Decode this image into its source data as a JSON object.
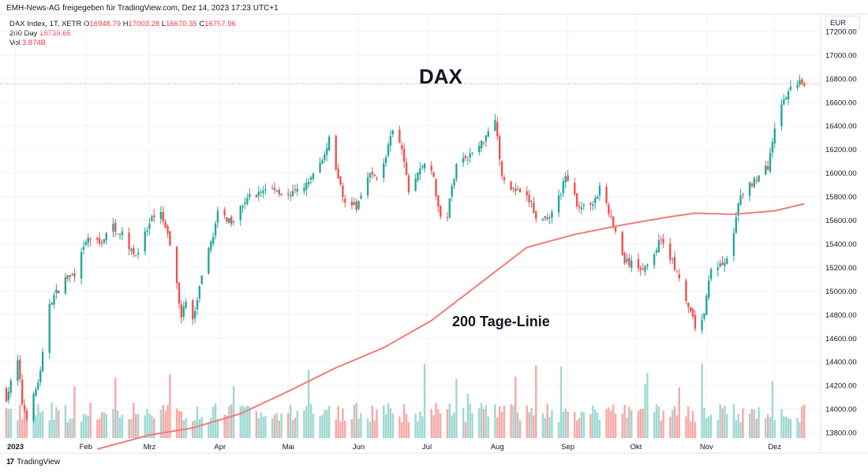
{
  "header": {
    "source_line": "EMH-News-AG freigegeben für TradingView.com, Dez 14, 2023 17:23 UTC+1",
    "symbol": "DAX Index, 1T, XETR",
    "ohlc": {
      "o_label": "O",
      "o": "16948.79",
      "h_label": "H",
      "h": "17003.28",
      "l_label": "L",
      "l": "16670.35",
      "c_label": "C",
      "c": "16757.96"
    },
    "ma_label": "200 Day",
    "ma_value": "15739.65",
    "vol_label": "Vol",
    "vol_value": "3.874B",
    "currency": "EUR"
  },
  "footer": {
    "brand": "TradingView",
    "logo_glyph": "17"
  },
  "colors": {
    "up": "#26a69a",
    "down": "#ef5350",
    "ma": "#f27b7b",
    "vol_up": "#9fd8d2",
    "vol_down": "#f6a9a7"
  },
  "chart_data": {
    "type": "candlestick",
    "title": "DAX",
    "annotation": "200 Tage-Linie",
    "y_ticks": [
      "17200.00",
      "17000.00",
      "16800.00",
      "16600.00",
      "16400.00",
      "16200.00",
      "16000.00",
      "15800.00",
      "15600.00",
      "15400.00",
      "15200.00",
      "15000.00",
      "14800.00",
      "14600.00",
      "14400.00",
      "14200.00",
      "14000.00",
      "13800.00"
    ],
    "y_range": [
      13660,
      17320
    ],
    "x_range": [
      "2022-12-28",
      "2023-12-16"
    ],
    "x_ticks": [
      {
        "label": "2023",
        "date": "2023-01-01"
      },
      {
        "label": "Feb",
        "date": "2023-02-01"
      },
      {
        "label": "Mrz",
        "date": "2023-03-01"
      },
      {
        "label": "Apr",
        "date": "2023-04-01"
      },
      {
        "label": "Mai",
        "date": "2023-05-01"
      },
      {
        "label": "Jun",
        "date": "2023-06-01"
      },
      {
        "label": "Jul",
        "date": "2023-07-01"
      },
      {
        "label": "Aug",
        "date": "2023-08-01"
      },
      {
        "label": "Sep",
        "date": "2023-09-01"
      },
      {
        "label": "Okt",
        "date": "2023-10-01"
      },
      {
        "label": "Nov",
        "date": "2023-11-01"
      },
      {
        "label": "Dez",
        "date": "2023-12-01"
      }
    ],
    "last_price_line": 16757.96,
    "close_anchors": [
      [
        "2022-12-28",
        14100
      ],
      [
        "2023-01-02",
        14400
      ],
      [
        "2023-01-04",
        14050
      ],
      [
        "2023-01-06",
        13950
      ],
      [
        "2023-01-09",
        14100
      ],
      [
        "2023-01-12",
        14300
      ],
      [
        "2023-01-16",
        14900
      ],
      [
        "2023-01-23",
        15100
      ],
      [
        "2023-01-27",
        15150
      ],
      [
        "2023-02-02",
        15450
      ],
      [
        "2023-02-07",
        15400
      ],
      [
        "2023-02-13",
        15550
      ],
      [
        "2023-02-16",
        15500
      ],
      [
        "2023-02-23",
        15300
      ],
      [
        "2023-03-02",
        15600
      ],
      [
        "2023-03-06",
        15650
      ],
      [
        "2023-03-10",
        15400
      ],
      [
        "2023-03-15",
        14800
      ],
      [
        "2023-03-17",
        14900
      ],
      [
        "2023-03-20",
        14750
      ],
      [
        "2023-03-24",
        15100
      ],
      [
        "2023-03-31",
        15650
      ],
      [
        "2023-04-06",
        15600
      ],
      [
        "2023-04-14",
        15800
      ],
      [
        "2023-04-20",
        15850
      ],
      [
        "2023-04-25",
        15870
      ],
      [
        "2023-05-02",
        15800
      ],
      [
        "2023-05-10",
        15920
      ],
      [
        "2023-05-18",
        16180
      ],
      [
        "2023-05-19",
        16300
      ],
      [
        "2023-05-25",
        15800
      ],
      [
        "2023-05-31",
        15700
      ],
      [
        "2023-06-05",
        16000
      ],
      [
        "2023-06-09",
        15950
      ],
      [
        "2023-06-13",
        16150
      ],
      [
        "2023-06-16",
        16350
      ],
      [
        "2023-06-20",
        16200
      ],
      [
        "2023-06-23",
        15850
      ],
      [
        "2023-06-30",
        16100
      ],
      [
        "2023-07-03",
        16050
      ],
      [
        "2023-07-07",
        15600
      ],
      [
        "2023-07-10",
        15650
      ],
      [
        "2023-07-14",
        16100
      ],
      [
        "2023-07-20",
        16150
      ],
      [
        "2023-07-25",
        16250
      ],
      [
        "2023-07-31",
        16480
      ],
      [
        "2023-08-03",
        15950
      ],
      [
        "2023-08-09",
        15850
      ],
      [
        "2023-08-16",
        15750
      ],
      [
        "2023-08-18",
        15600
      ],
      [
        "2023-08-25",
        15650
      ],
      [
        "2023-08-31",
        15950
      ],
      [
        "2023-09-05",
        15750
      ],
      [
        "2023-09-08",
        15700
      ],
      [
        "2023-09-14",
        15800
      ],
      [
        "2023-09-15",
        15900
      ],
      [
        "2023-09-21",
        15550
      ],
      [
        "2023-09-26",
        15250
      ],
      [
        "2023-10-02",
        15200
      ],
      [
        "2023-10-06",
        15200
      ],
      [
        "2023-10-12",
        15450
      ],
      [
        "2023-10-17",
        15250
      ],
      [
        "2023-10-24",
        14850
      ],
      [
        "2023-10-27",
        14700
      ],
      [
        "2023-10-31",
        14800
      ],
      [
        "2023-11-03",
        15200
      ],
      [
        "2023-11-10",
        15250
      ],
      [
        "2023-11-16",
        15800
      ],
      [
        "2023-11-22",
        15950
      ],
      [
        "2023-11-28",
        16050
      ],
      [
        "2023-12-01",
        16400
      ],
      [
        "2023-12-06",
        16650
      ],
      [
        "2023-12-12",
        16800
      ],
      [
        "2023-12-14",
        16757.96
      ]
    ],
    "ma_anchors": [
      [
        "2023-02-06",
        13660
      ],
      [
        "2023-03-01",
        13780
      ],
      [
        "2023-03-20",
        13840
      ],
      [
        "2023-04-10",
        13960
      ],
      [
        "2023-05-01",
        14150
      ],
      [
        "2023-05-22",
        14350
      ],
      [
        "2023-06-12",
        14520
      ],
      [
        "2023-07-03",
        14750
      ],
      [
        "2023-07-24",
        15060
      ],
      [
        "2023-08-14",
        15370
      ],
      [
        "2023-09-04",
        15480
      ],
      [
        "2023-09-25",
        15560
      ],
      [
        "2023-10-16",
        15630
      ],
      [
        "2023-10-27",
        15660
      ],
      [
        "2023-11-13",
        15650
      ],
      [
        "2023-12-01",
        15680
      ],
      [
        "2023-12-14",
        15739.65
      ]
    ]
  }
}
